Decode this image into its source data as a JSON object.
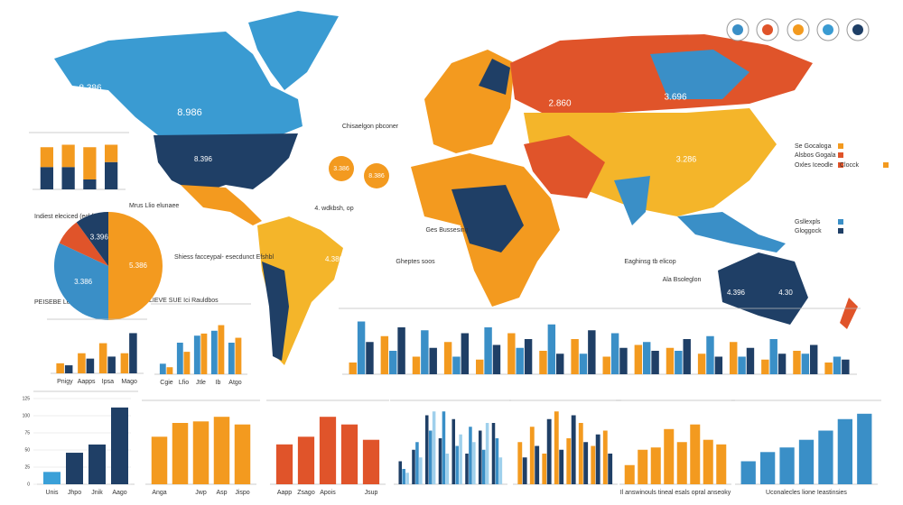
{
  "map_labels": [
    "8.886",
    "8.986",
    "8.386",
    "8.396",
    "2.860",
    "3.696",
    "3.286",
    "4.386",
    "4.396",
    "4.30",
    "Chisaelgon pbconer",
    "Ges Bussesing",
    "Eaghinsg tb elicop",
    "Ala Bsoleglon",
    "4. wdkbsh, op",
    "Gheptes soos"
  ],
  "orange_badges": [
    "3.386",
    "8.386"
  ],
  "legend_texts": [
    "Se Gocaloga",
    "Alsbos Gogala",
    "Oxles Iceodle",
    "Clocck",
    "Gsllexpls",
    "Gloggock"
  ],
  "side_texts": [
    "Indiest eleciced (ecl feusew)",
    "Mrus Llio elunaee",
    "Shiess facceypal- esecdunct Efshbl",
    "PEISEBE Leis Emelc",
    "LIEVE SUE Ici Rauldbos"
  ],
  "chart_data": [
    {
      "type": "pie",
      "values": [
        50,
        32,
        8,
        10
      ],
      "colors": [
        "#f39a1f",
        "#3a8fc7",
        "#e0542a",
        "#1f3f66"
      ],
      "value_labels": [
        "5.386",
        "3.386",
        null,
        "3.396"
      ]
    },
    {
      "type": "bar",
      "stacked": true,
      "categories": [
        null,
        null,
        null,
        null
      ],
      "ylim": [
        0,
        100
      ],
      "series": [
        {
          "color": "#1f3f66",
          "values": [
            45,
            45,
            20,
            55
          ]
        },
        {
          "color": "#f39a1f",
          "values": [
            40,
            45,
            65,
            35
          ]
        }
      ]
    },
    {
      "type": "bar",
      "categories": [
        "Pnigy",
        "Aapps",
        "Ipsa",
        "Mago"
      ],
      "ylim": [
        0,
        70
      ],
      "series": [
        {
          "color": "#f39a1f",
          "values": [
            15,
            30,
            45,
            30
          ]
        },
        {
          "color": "#1f3f66",
          "values": [
            12,
            22,
            25,
            60
          ]
        }
      ]
    },
    {
      "type": "bar",
      "categories": [
        "Cgie",
        "Lfio",
        "Jtle",
        "Ib",
        "Atgo"
      ],
      "ylim": [
        0,
        90
      ],
      "series": [
        {
          "color": "#3a8fc7",
          "values": [
            15,
            45,
            55,
            62,
            45
          ]
        },
        {
          "color": "#f39a1f",
          "values": [
            10,
            32,
            58,
            70,
            52
          ]
        }
      ]
    },
    {
      "type": "bar",
      "categories": [
        null,
        null,
        null,
        null,
        null,
        null,
        null,
        null,
        null,
        null,
        null,
        null,
        null,
        null,
        null,
        null
      ],
      "ylim": [
        0,
        100
      ],
      "series": [
        {
          "color": "#f39a1f",
          "values": [
            20,
            65,
            30,
            55,
            25,
            70,
            40,
            60,
            30,
            50,
            45,
            35,
            55,
            25,
            40,
            20
          ]
        },
        {
          "color": "#3a8fc7",
          "values": [
            90,
            40,
            75,
            30,
            80,
            45,
            85,
            35,
            70,
            55,
            40,
            65,
            30,
            60,
            35,
            30
          ]
        },
        {
          "color": "#1f3f66",
          "values": [
            55,
            80,
            45,
            70,
            50,
            60,
            35,
            75,
            45,
            40,
            60,
            30,
            45,
            35,
            50,
            25
          ]
        }
      ]
    },
    {
      "type": "bar",
      "categories": [
        "Unis",
        "Jhpo",
        "Jnik",
        "Aago"
      ],
      "ylim": [
        0,
        125
      ],
      "yticks": [
        0,
        25,
        50,
        75,
        100,
        125
      ],
      "grid": true,
      "values": [
        18,
        46,
        58,
        112
      ],
      "colors": [
        "#3aa0d8",
        "#1f3f66",
        "#1f3f66",
        "#1f3f66"
      ]
    },
    {
      "type": "bar",
      "categories": [
        "Anga",
        null,
        "Jwp",
        "Asp",
        "Jispo"
      ],
      "ylim": [
        0,
        100
      ],
      "values": [
        62,
        80,
        82,
        88,
        78
      ],
      "color": "#f39a1f"
    },
    {
      "type": "bar",
      "categories": [
        "Aapp",
        "Zsago",
        "Apois",
        null,
        "Jsup"
      ],
      "ylim": [
        0,
        100
      ],
      "values": [
        52,
        62,
        88,
        78,
        58
      ],
      "color": "#e0542a"
    },
    {
      "type": "bar",
      "categories": [
        null,
        null,
        null,
        null,
        null,
        null,
        null,
        null
      ],
      "ylim": [
        0,
        100
      ],
      "series": [
        {
          "color": "#1f3f66",
          "values": [
            30,
            45,
            90,
            60,
            85,
            40,
            70,
            80
          ]
        },
        {
          "color": "#3a8fc7",
          "values": [
            20,
            55,
            70,
            95,
            50,
            75,
            45,
            60
          ]
        },
        {
          "color": "#9fd0ec",
          "values": [
            15,
            35,
            95,
            40,
            65,
            55,
            80,
            35
          ]
        }
      ]
    },
    {
      "type": "bar",
      "categories": [
        null,
        null,
        null,
        null,
        null,
        null,
        null,
        null
      ],
      "ylim": [
        0,
        100
      ],
      "series": [
        {
          "color": "#f39a1f",
          "values": [
            55,
            75,
            40,
            95,
            60,
            80,
            50,
            70
          ]
        },
        {
          "color": "#1f3f66",
          "values": [
            35,
            50,
            85,
            45,
            90,
            55,
            65,
            40
          ]
        }
      ]
    },
    {
      "type": "bar",
      "categories": [
        null,
        null,
        null,
        null,
        null,
        null,
        null,
        null
      ],
      "ylim": [
        0,
        100
      ],
      "values": [
        25,
        45,
        48,
        72,
        55,
        78,
        58,
        52
      ],
      "color": "#f39a1f",
      "caption": "Il answinouls tineal esals opral anseoky"
    },
    {
      "type": "bar",
      "categories": [
        null,
        null,
        null,
        null,
        null,
        null,
        null
      ],
      "ylim": [
        0,
        100
      ],
      "values": [
        30,
        42,
        48,
        58,
        70,
        85,
        92
      ],
      "color": "#3a8fc7",
      "caption": "Uconalecles lione Ieastinsies"
    }
  ]
}
